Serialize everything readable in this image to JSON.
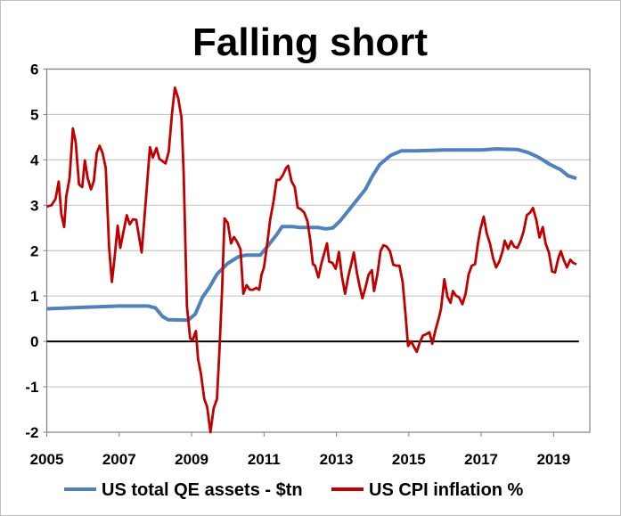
{
  "chart_data": {
    "type": "line",
    "title": "Falling short",
    "xlabel": "",
    "ylabel": "",
    "xlim": [
      2005,
      2020
    ],
    "ylim": [
      -2,
      6
    ],
    "x_ticks": [
      "2005",
      "2007",
      "2009",
      "2011",
      "2013",
      "2015",
      "2017",
      "2019"
    ],
    "y_ticks": [
      "-2",
      "-1",
      "0",
      "1",
      "2",
      "3",
      "4",
      "5",
      "6"
    ],
    "grid": "horizontal",
    "legend_position": "bottom",
    "colors": {
      "qe": "#4f81bd",
      "cpi": "#c00000",
      "zero_line": "#000000",
      "grid": "#c8c8c8"
    },
    "series": [
      {
        "name": "US total QE assets - $tn",
        "points": [
          [
            2005.0,
            0.72
          ],
          [
            2006.0,
            0.75
          ],
          [
            2007.0,
            0.78
          ],
          [
            2007.8,
            0.78
          ],
          [
            2008.0,
            0.74
          ],
          [
            2008.2,
            0.55
          ],
          [
            2008.35,
            0.48
          ],
          [
            2008.9,
            0.47
          ],
          [
            2009.1,
            0.6
          ],
          [
            2009.3,
            0.97
          ],
          [
            2009.5,
            1.2
          ],
          [
            2009.7,
            1.48
          ],
          [
            2010.0,
            1.72
          ],
          [
            2010.3,
            1.87
          ],
          [
            2010.5,
            1.9
          ],
          [
            2010.9,
            1.9
          ],
          [
            2011.1,
            2.1
          ],
          [
            2011.35,
            2.35
          ],
          [
            2011.5,
            2.53
          ],
          [
            2011.8,
            2.53
          ],
          [
            2012.0,
            2.51
          ],
          [
            2012.5,
            2.51
          ],
          [
            2012.7,
            2.48
          ],
          [
            2012.9,
            2.5
          ],
          [
            2013.1,
            2.65
          ],
          [
            2013.4,
            2.95
          ],
          [
            2013.8,
            3.35
          ],
          [
            2014.0,
            3.65
          ],
          [
            2014.2,
            3.9
          ],
          [
            2014.5,
            4.1
          ],
          [
            2014.8,
            4.2
          ],
          [
            2015.2,
            4.2
          ],
          [
            2016.0,
            4.22
          ],
          [
            2017.0,
            4.22
          ],
          [
            2017.4,
            4.24
          ],
          [
            2018.0,
            4.23
          ],
          [
            2018.3,
            4.16
          ],
          [
            2018.6,
            4.05
          ],
          [
            2018.9,
            3.9
          ],
          [
            2019.2,
            3.78
          ],
          [
            2019.4,
            3.65
          ],
          [
            2019.63,
            3.59
          ]
        ]
      },
      {
        "name": "US CPI inflation %",
        "points": [
          [
            2005.0,
            2.97
          ],
          [
            2005.13,
            3.0
          ],
          [
            2005.24,
            3.14
          ],
          [
            2005.33,
            3.52
          ],
          [
            2005.4,
            2.81
          ],
          [
            2005.48,
            2.52
          ],
          [
            2005.54,
            3.2
          ],
          [
            2005.63,
            3.6
          ],
          [
            2005.72,
            4.69
          ],
          [
            2005.8,
            4.38
          ],
          [
            2005.89,
            3.46
          ],
          [
            2005.98,
            3.4
          ],
          [
            2006.05,
            3.99
          ],
          [
            2006.13,
            3.6
          ],
          [
            2006.22,
            3.35
          ],
          [
            2006.3,
            3.53
          ],
          [
            2006.38,
            4.15
          ],
          [
            2006.46,
            4.31
          ],
          [
            2006.54,
            4.15
          ],
          [
            2006.63,
            3.82
          ],
          [
            2006.72,
            2.09
          ],
          [
            2006.8,
            1.31
          ],
          [
            2006.88,
            1.9
          ],
          [
            2006.96,
            2.55
          ],
          [
            2007.03,
            2.06
          ],
          [
            2007.12,
            2.42
          ],
          [
            2007.21,
            2.78
          ],
          [
            2007.29,
            2.58
          ],
          [
            2007.38,
            2.69
          ],
          [
            2007.47,
            2.68
          ],
          [
            2007.54,
            2.35
          ],
          [
            2007.62,
            1.96
          ],
          [
            2007.72,
            2.94
          ],
          [
            2007.85,
            4.28
          ],
          [
            2007.93,
            4.05
          ],
          [
            2008.03,
            4.26
          ],
          [
            2008.11,
            4.02
          ],
          [
            2008.2,
            3.97
          ],
          [
            2008.28,
            3.92
          ],
          [
            2008.37,
            4.18
          ],
          [
            2008.46,
            5.03
          ],
          [
            2008.54,
            5.59
          ],
          [
            2008.63,
            5.36
          ],
          [
            2008.72,
            4.93
          ],
          [
            2008.78,
            3.73
          ],
          [
            2008.87,
            0.78
          ],
          [
            2008.96,
            0.07
          ],
          [
            2009.03,
            0.03
          ],
          [
            2009.12,
            0.23
          ],
          [
            2009.18,
            -0.39
          ],
          [
            2009.26,
            -0.72
          ],
          [
            2009.35,
            -1.27
          ],
          [
            2009.43,
            -1.44
          ],
          [
            2009.52,
            -2.0
          ],
          [
            2009.61,
            -1.47
          ],
          [
            2009.7,
            -1.27
          ],
          [
            2009.77,
            -0.2
          ],
          [
            2009.84,
            1.11
          ],
          [
            2009.91,
            2.71
          ],
          [
            2010.0,
            2.61
          ],
          [
            2010.09,
            2.16
          ],
          [
            2010.17,
            2.3
          ],
          [
            2010.26,
            2.19
          ],
          [
            2010.35,
            2.03
          ],
          [
            2010.43,
            1.05
          ],
          [
            2010.52,
            1.24
          ],
          [
            2010.61,
            1.14
          ],
          [
            2010.7,
            1.14
          ],
          [
            2010.78,
            1.18
          ],
          [
            2010.87,
            1.14
          ],
          [
            2010.93,
            1.47
          ],
          [
            2011.0,
            1.63
          ],
          [
            2011.09,
            2.16
          ],
          [
            2011.17,
            2.68
          ],
          [
            2011.26,
            3.07
          ],
          [
            2011.35,
            3.56
          ],
          [
            2011.43,
            3.56
          ],
          [
            2011.52,
            3.66
          ],
          [
            2011.61,
            3.82
          ],
          [
            2011.67,
            3.87
          ],
          [
            2011.76,
            3.53
          ],
          [
            2011.85,
            3.4
          ],
          [
            2011.93,
            2.95
          ],
          [
            2012.02,
            2.91
          ],
          [
            2012.11,
            2.84
          ],
          [
            2012.2,
            2.65
          ],
          [
            2012.28,
            2.22
          ],
          [
            2012.35,
            1.7
          ],
          [
            2012.41,
            1.67
          ],
          [
            2012.5,
            1.41
          ],
          [
            2012.59,
            1.73
          ],
          [
            2012.67,
            1.96
          ],
          [
            2012.74,
            2.16
          ],
          [
            2012.8,
            1.76
          ],
          [
            2012.89,
            1.73
          ],
          [
            2012.98,
            1.6
          ],
          [
            2013.07,
            1.97
          ],
          [
            2013.15,
            1.44
          ],
          [
            2013.24,
            1.05
          ],
          [
            2013.33,
            1.44
          ],
          [
            2013.41,
            1.7
          ],
          [
            2013.48,
            1.96
          ],
          [
            2013.57,
            1.5
          ],
          [
            2013.65,
            1.18
          ],
          [
            2013.72,
            0.95
          ],
          [
            2013.8,
            1.18
          ],
          [
            2013.89,
            1.47
          ],
          [
            2013.98,
            1.57
          ],
          [
            2014.04,
            1.11
          ],
          [
            2014.13,
            1.47
          ],
          [
            2014.22,
            1.99
          ],
          [
            2014.3,
            2.12
          ],
          [
            2014.39,
            2.09
          ],
          [
            2014.48,
            1.99
          ],
          [
            2014.57,
            1.69
          ],
          [
            2014.65,
            1.67
          ],
          [
            2014.74,
            1.67
          ],
          [
            2014.83,
            1.31
          ],
          [
            2014.91,
            0.59
          ],
          [
            2014.98,
            -0.1
          ],
          [
            2015.07,
            0.0
          ],
          [
            2015.15,
            -0.13
          ],
          [
            2015.22,
            -0.23
          ],
          [
            2015.3,
            -0.03
          ],
          [
            2015.39,
            0.13
          ],
          [
            2015.48,
            0.16
          ],
          [
            2015.57,
            0.2
          ],
          [
            2015.65,
            -0.05
          ],
          [
            2015.74,
            0.26
          ],
          [
            2015.83,
            0.52
          ],
          [
            2015.89,
            0.72
          ],
          [
            2015.98,
            1.37
          ],
          [
            2016.07,
            0.98
          ],
          [
            2016.15,
            0.85
          ],
          [
            2016.22,
            1.11
          ],
          [
            2016.3,
            1.01
          ],
          [
            2016.39,
            0.97
          ],
          [
            2016.48,
            0.82
          ],
          [
            2016.57,
            1.05
          ],
          [
            2016.65,
            1.47
          ],
          [
            2016.74,
            1.67
          ],
          [
            2016.83,
            1.7
          ],
          [
            2016.91,
            2.16
          ],
          [
            2016.98,
            2.48
          ],
          [
            2017.07,
            2.75
          ],
          [
            2017.15,
            2.39
          ],
          [
            2017.24,
            2.16
          ],
          [
            2017.33,
            1.83
          ],
          [
            2017.41,
            1.63
          ],
          [
            2017.5,
            1.76
          ],
          [
            2017.59,
            1.99
          ],
          [
            2017.65,
            2.22
          ],
          [
            2017.74,
            2.04
          ],
          [
            2017.83,
            2.21
          ],
          [
            2017.91,
            2.09
          ],
          [
            2018.0,
            2.06
          ],
          [
            2018.09,
            2.22
          ],
          [
            2018.17,
            2.42
          ],
          [
            2018.26,
            2.78
          ],
          [
            2018.35,
            2.84
          ],
          [
            2018.43,
            2.94
          ],
          [
            2018.52,
            2.68
          ],
          [
            2018.61,
            2.29
          ],
          [
            2018.7,
            2.52
          ],
          [
            2018.78,
            2.16
          ],
          [
            2018.87,
            1.96
          ],
          [
            2018.96,
            1.54
          ],
          [
            2019.04,
            1.52
          ],
          [
            2019.13,
            1.83
          ],
          [
            2019.2,
            1.99
          ],
          [
            2019.28,
            1.8
          ],
          [
            2019.37,
            1.63
          ],
          [
            2019.46,
            1.8
          ],
          [
            2019.54,
            1.73
          ],
          [
            2019.63,
            1.7
          ]
        ]
      }
    ]
  }
}
